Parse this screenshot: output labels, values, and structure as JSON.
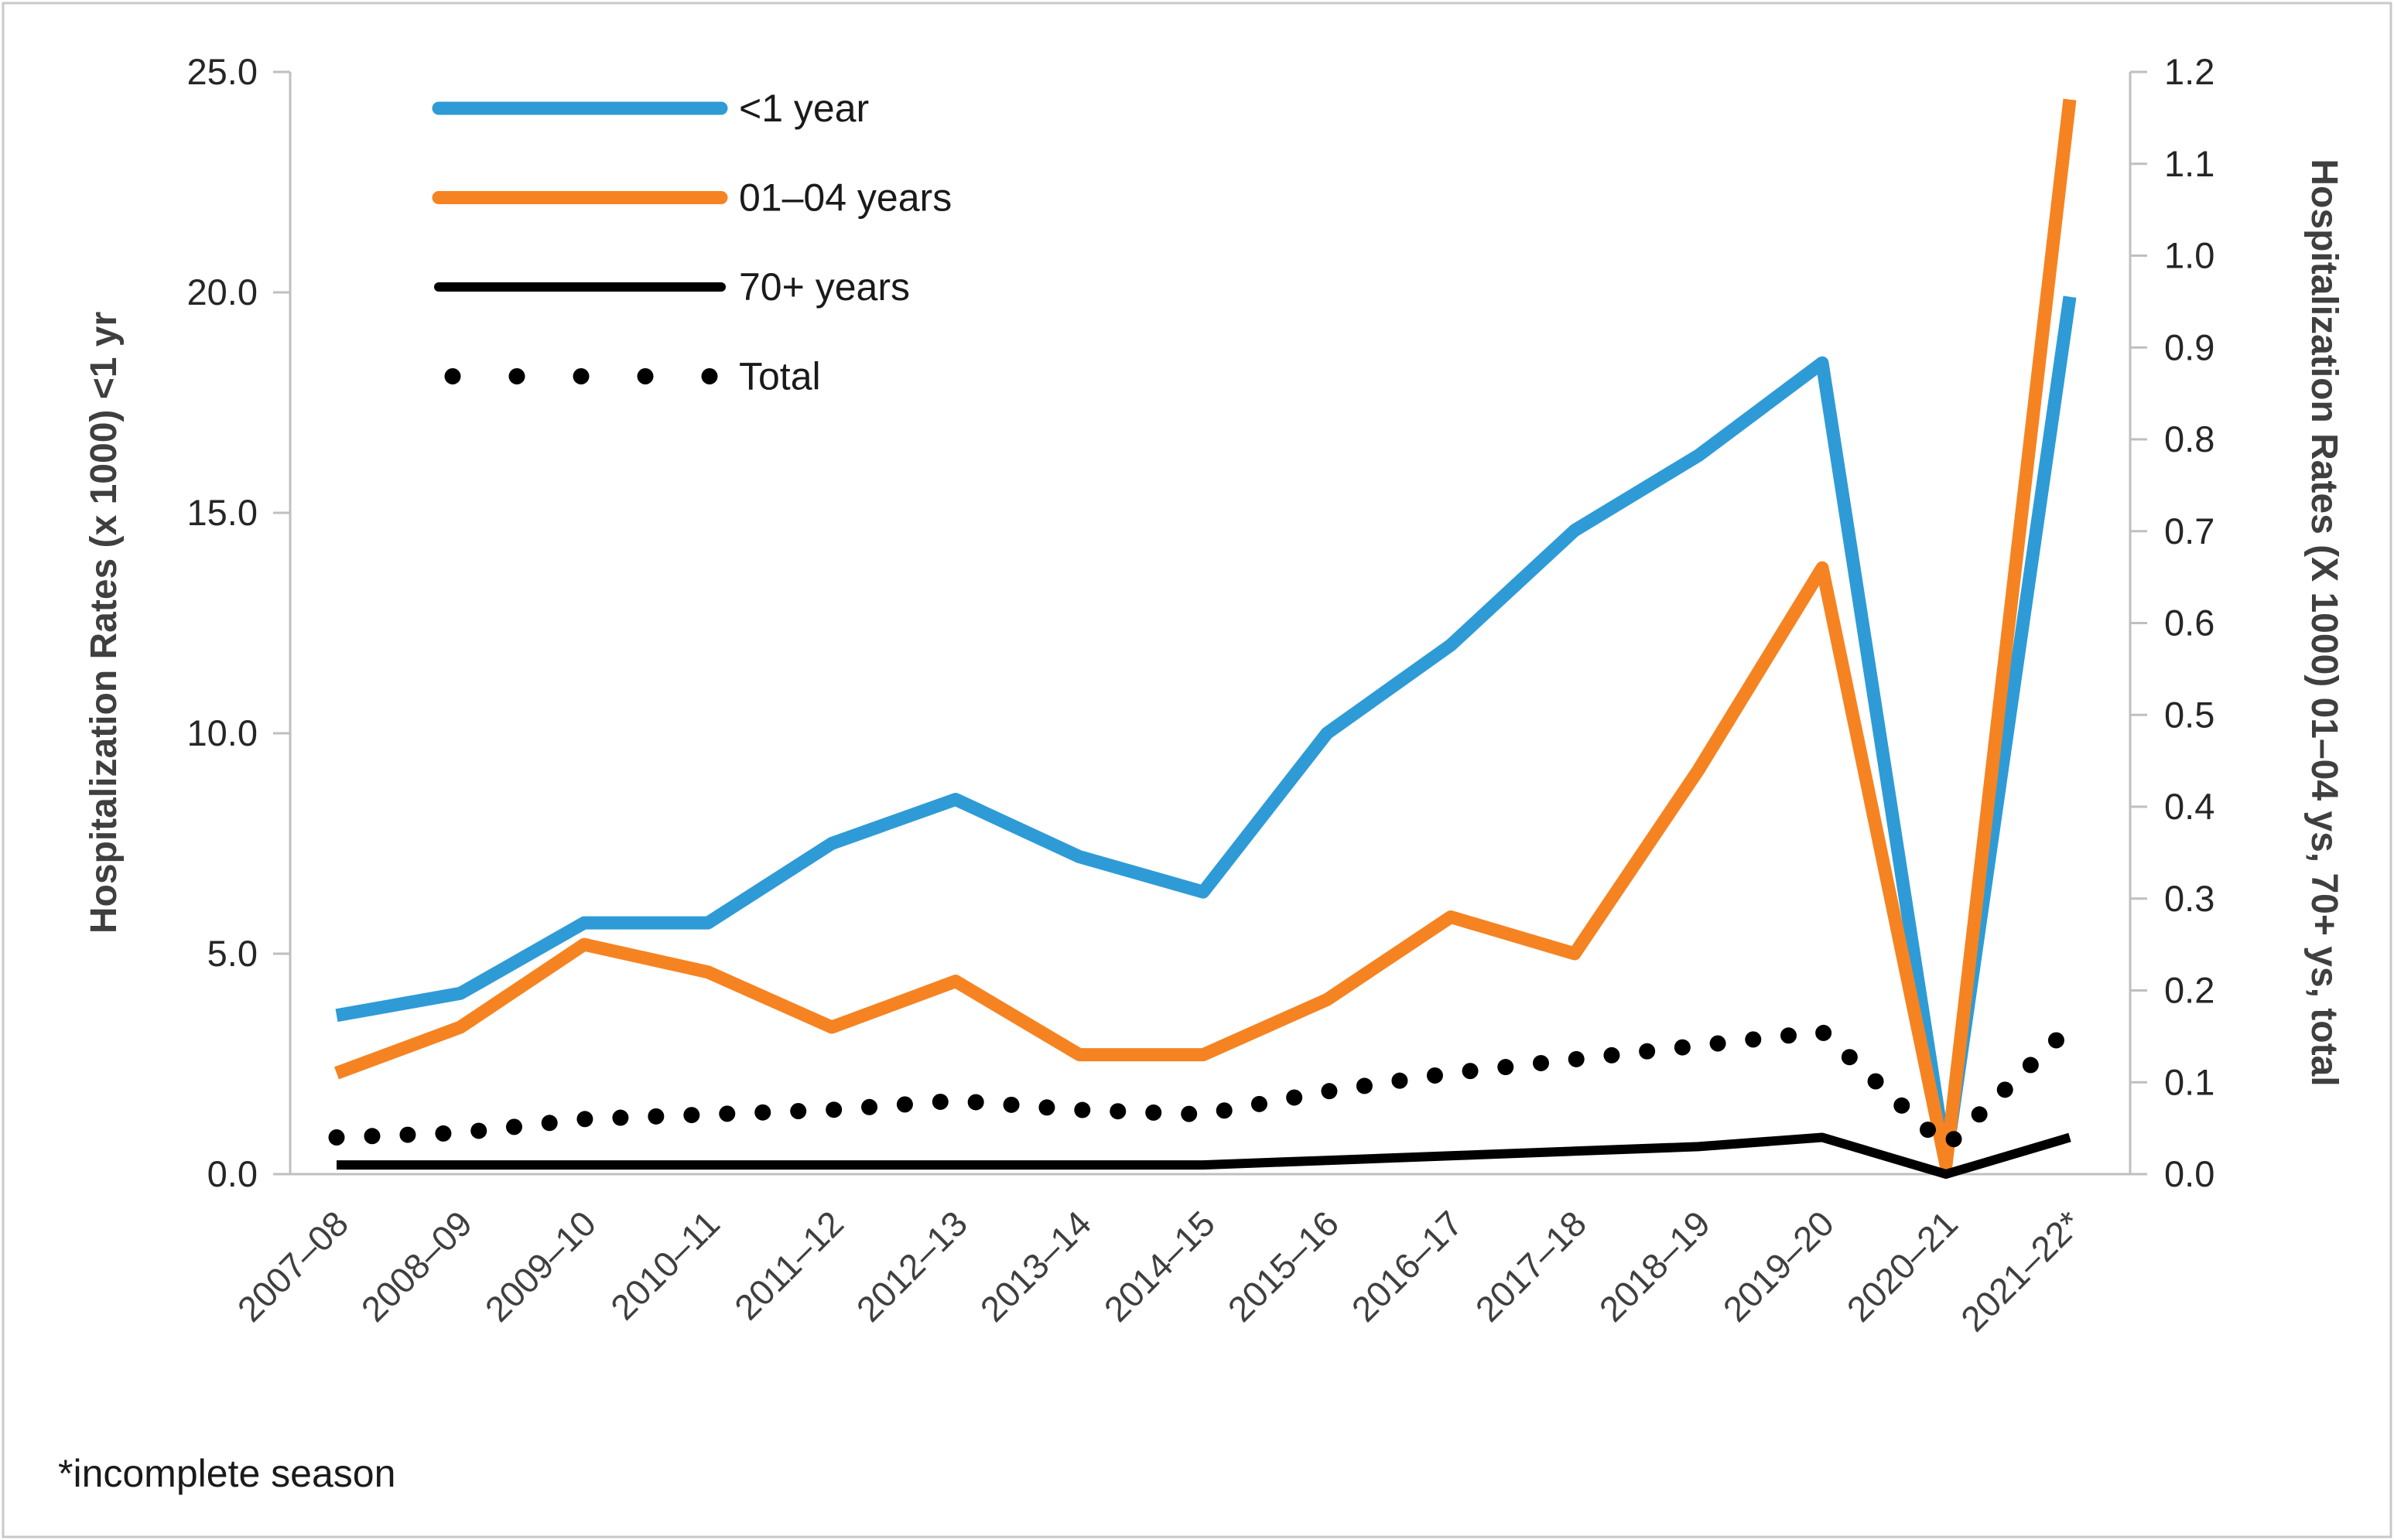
{
  "footnote": "*incomplete season",
  "chart_data": {
    "type": "line",
    "title": "",
    "xlabel": "",
    "categories": [
      "2007–08",
      "2008–09",
      "2009–10",
      "2010–11",
      "2011–12",
      "2012–13",
      "2013–14",
      "2014–15",
      "2015–16",
      "2016–17",
      "2017–18",
      "2018–19",
      "2019–20",
      "2020–21",
      "2021–22*"
    ],
    "series": [
      {
        "name": "<1 year",
        "axis": "left",
        "color": "#2e9bd6",
        "style": "solid",
        "line_width": 17,
        "values": [
          3.6,
          4.1,
          5.7,
          5.7,
          7.5,
          8.5,
          7.2,
          6.4,
          10.0,
          12.0,
          14.6,
          16.3,
          18.4,
          0.3,
          19.9
        ]
      },
      {
        "name": "01–04 years",
        "axis": "right",
        "color": "#f68321",
        "style": "solid",
        "line_width": 17,
        "values": [
          0.11,
          0.16,
          0.25,
          0.22,
          0.16,
          0.21,
          0.13,
          0.13,
          0.19,
          0.28,
          0.24,
          0.44,
          0.66,
          0.01,
          1.17
        ]
      },
      {
        "name": "70+ years",
        "axis": "right",
        "color": "#000000",
        "style": "solid",
        "line_width": 12,
        "values": [
          0.01,
          0.01,
          0.01,
          0.01,
          0.01,
          0.01,
          0.01,
          0.01,
          0.015,
          0.02,
          0.025,
          0.03,
          0.04,
          0.0,
          0.04
        ]
      },
      {
        "name": "Total",
        "axis": "right",
        "color": "#000000",
        "style": "dotted",
        "line_width": 21,
        "values": [
          0.04,
          0.045,
          0.06,
          0.065,
          0.07,
          0.08,
          0.07,
          0.065,
          0.09,
          0.11,
          0.125,
          0.14,
          0.155,
          0.03,
          0.16
        ]
      }
    ],
    "left_axis": {
      "label": "Hospitalization Rates (x 1000) <1 yr",
      "min": 0,
      "max": 25,
      "step": 5,
      "decimals": 1
    },
    "right_axis": {
      "label": "Hospitalization Rates (X 1000) 01–04 ys, 70+ ys, total",
      "min": 0,
      "max": 1.2,
      "step": 0.1,
      "decimals": 1
    },
    "grid": false,
    "legend_position": "top-left-inside"
  }
}
